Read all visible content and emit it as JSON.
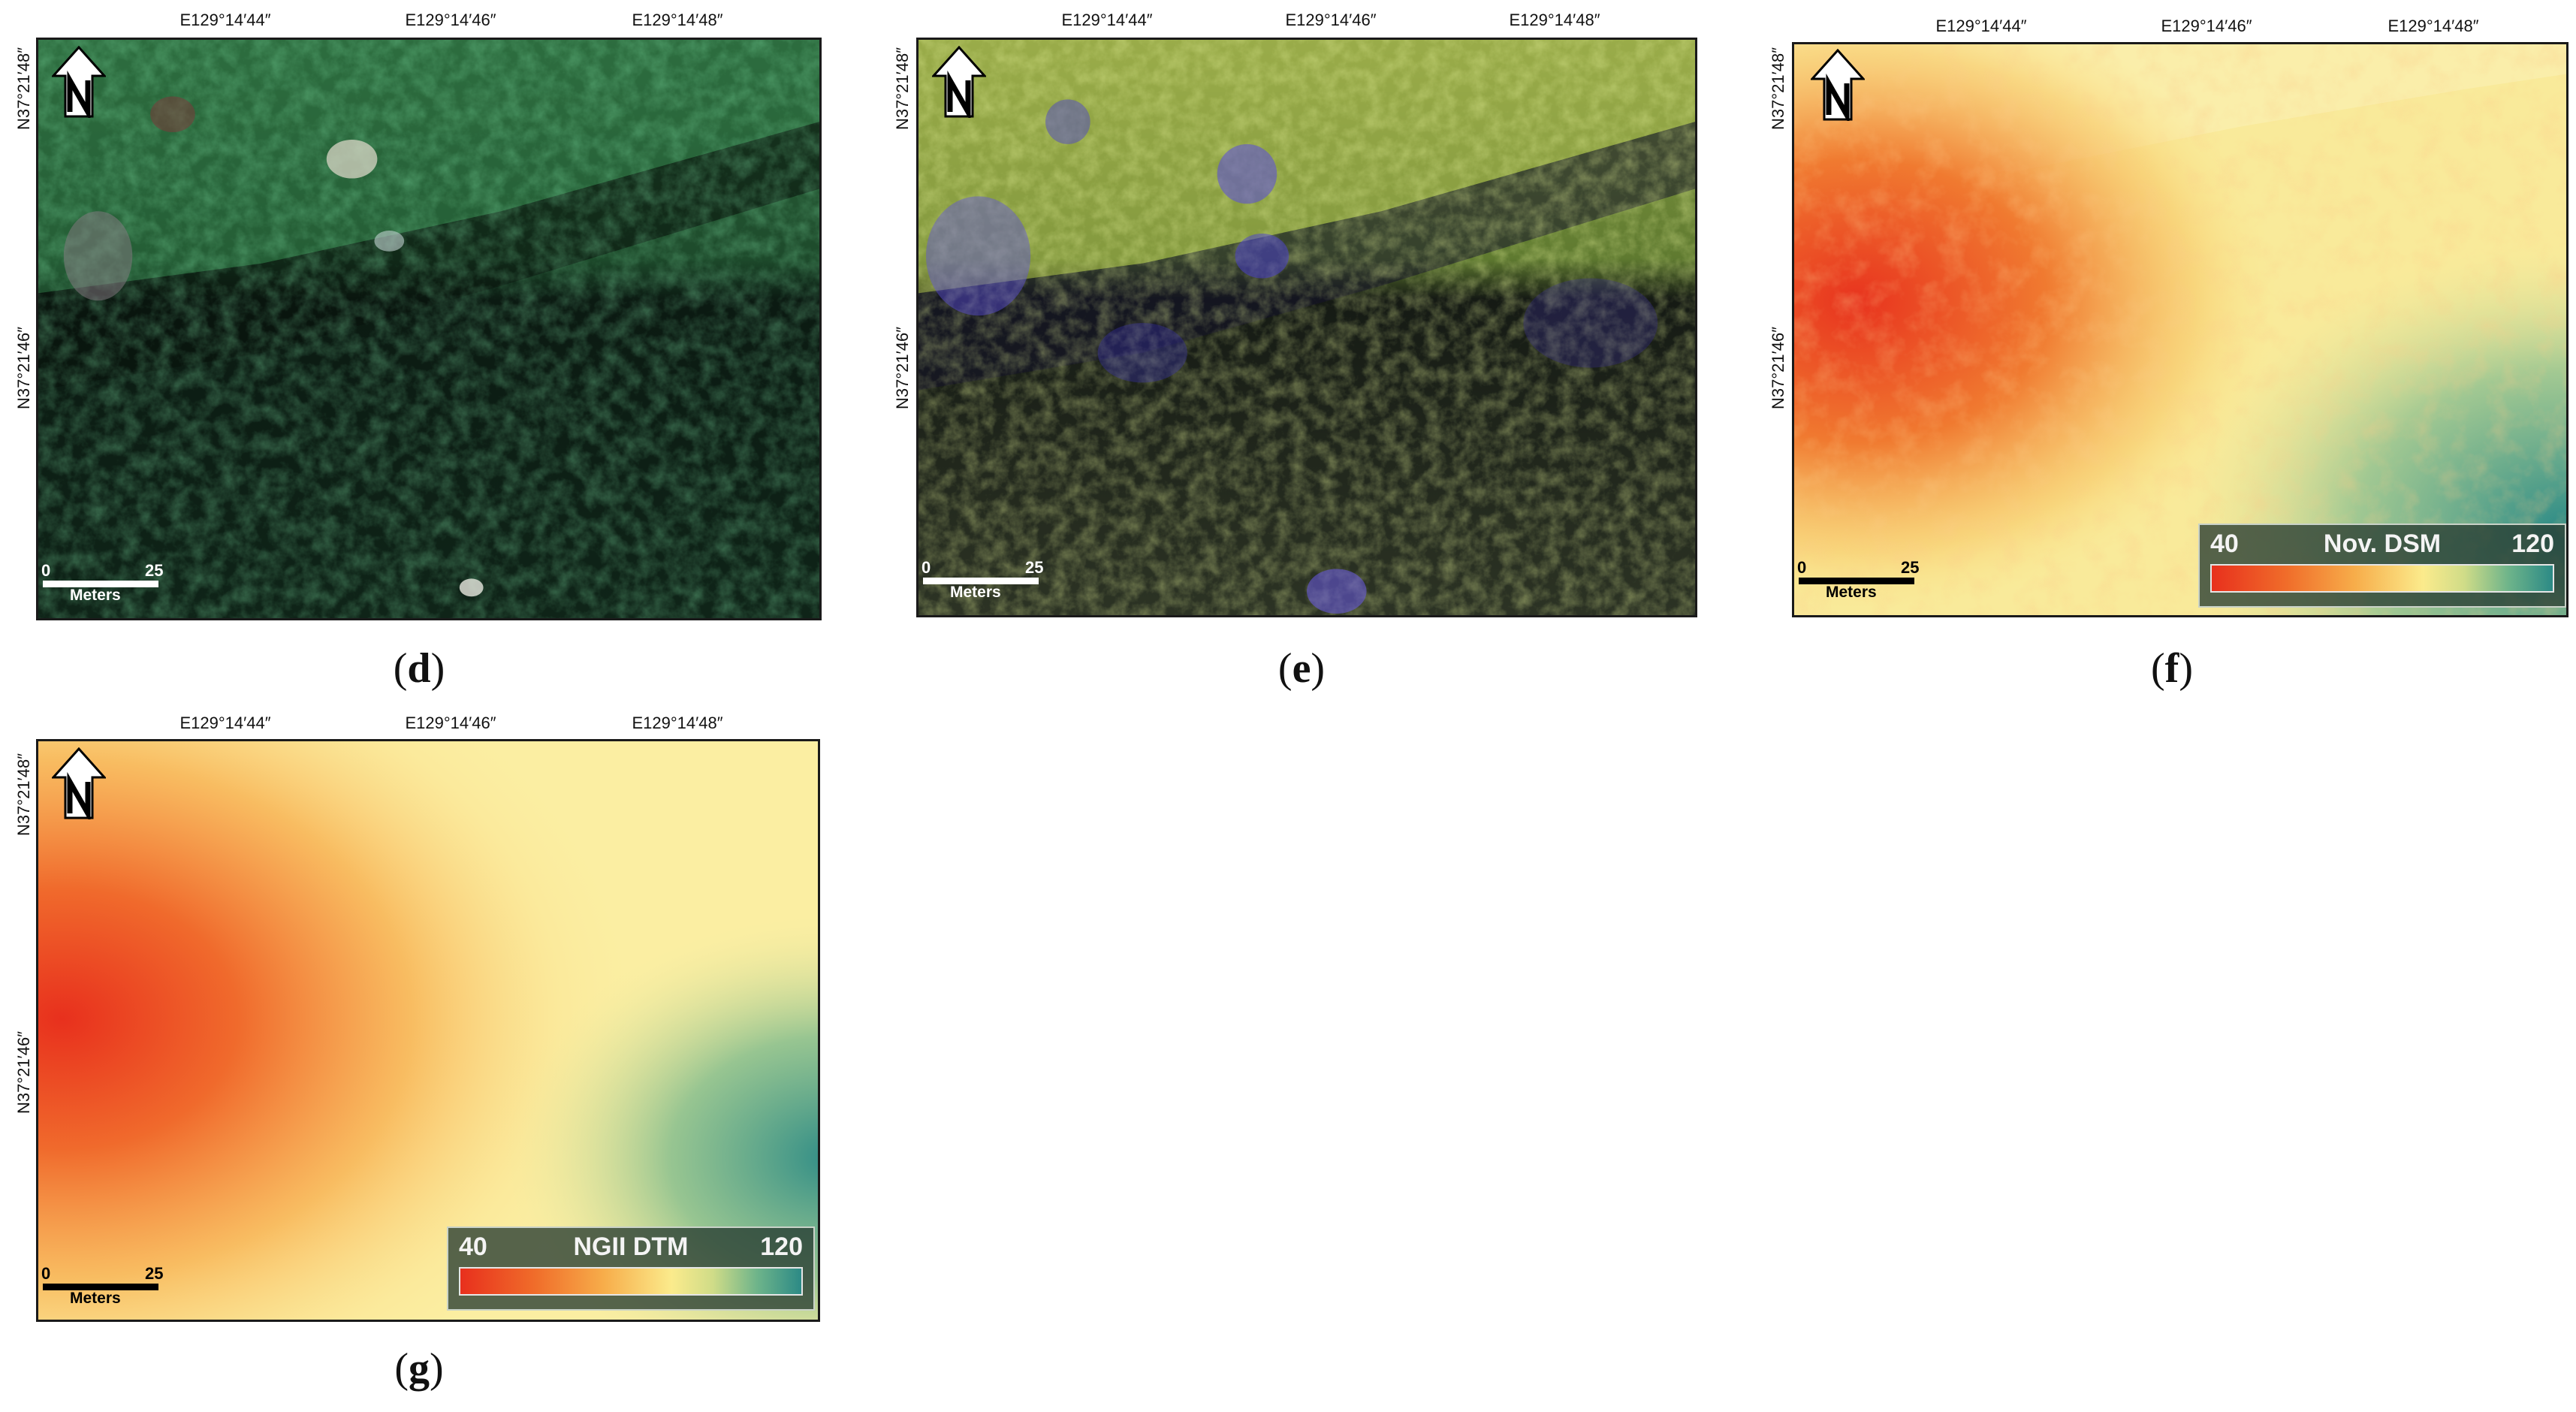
{
  "panels": [
    {
      "id": "d",
      "caption_letter": "d",
      "lon_labels": [
        "E129°14′44″",
        "E129°14′46″",
        "E129°14′48″"
      ],
      "lat_labels": [
        "N37°21′48″",
        "N37°21′46″"
      ],
      "scale": {
        "zero": "0",
        "max": "25",
        "unit": "Meters",
        "bar_color": "#ffffff"
      },
      "imagery": "rgb-orthophoto"
    },
    {
      "id": "e",
      "caption_letter": "e",
      "lon_labels": [
        "E129°14′44″",
        "E129°14′46″",
        "E129°14′48″"
      ],
      "lat_labels": [
        "N37°21′48″",
        "N37°21′46″"
      ],
      "scale": {
        "zero": "0",
        "max": "25",
        "unit": "Meters",
        "bar_color": "#ffffff"
      },
      "imagery": "multispectral-false-color"
    },
    {
      "id": "f",
      "caption_letter": "f",
      "lon_labels": [
        "E129°14′44″",
        "E129°14′46″",
        "E129°14′48″"
      ],
      "lat_labels": [
        "N37°21′48″",
        "N37°21′46″"
      ],
      "scale": {
        "zero": "0",
        "max": "25",
        "unit": "Meters",
        "bar_color": "#000000"
      },
      "imagery": "dsm-elevation",
      "legend": {
        "min": "40",
        "max": "120",
        "title": "Nov. DSM"
      }
    },
    {
      "id": "g",
      "caption_letter": "g",
      "lon_labels": [
        "E129°14′44″",
        "E129°14′46″",
        "E129°14′48″"
      ],
      "lat_labels": [
        "N37°21′48″",
        "N37°21′46″"
      ],
      "scale": {
        "zero": "0",
        "max": "25",
        "unit": "Meters",
        "bar_color": "#000000"
      },
      "imagery": "dtm-elevation",
      "legend": {
        "min": "40",
        "max": "120",
        "title": "NGII DTM"
      }
    }
  ],
  "icons": {
    "north_arrow": "north-arrow-icon"
  },
  "colors": {
    "ramp_low": "#e8301d",
    "ramp_mid": "#fbeb8c",
    "ramp_high": "#2c8a86"
  }
}
